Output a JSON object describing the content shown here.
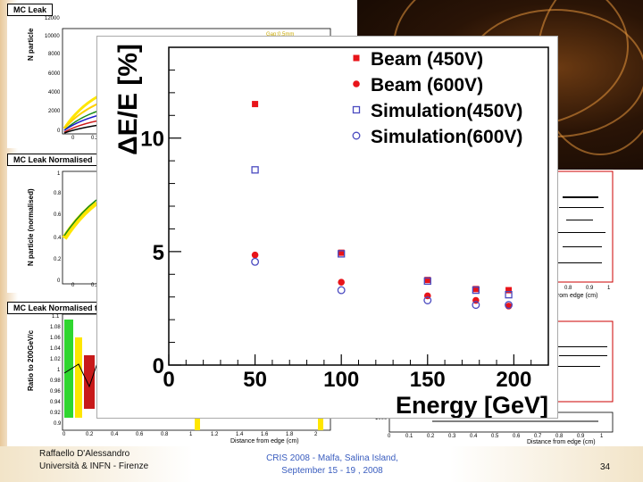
{
  "background_panels": {
    "leak": {
      "title": "MC Leak",
      "ylabel": "N particle",
      "yticks": [
        "12000",
        "10000",
        "8000",
        "6000",
        "4000",
        "2000",
        "0"
      ],
      "xticks": [
        "0",
        "0.2"
      ],
      "legend": "Gap:0.5mm"
    },
    "normalised": {
      "title": "MC Leak Normalised",
      "ylabel": "N particle (normalised)",
      "yticks": [
        "1",
        "0.8",
        "0.6",
        "0.4",
        "0.2",
        "0"
      ],
      "xticks": [
        "0",
        "0.2"
      ]
    },
    "normalised_200": {
      "title": "MC Leak Normalised to 200GeV",
      "ylabel": "Ratio to 200GeV/c",
      "yticks": [
        "1.1",
        "1.08",
        "1.06",
        "1.04",
        "1.02",
        "1",
        "0.98",
        "0.96",
        "0.94",
        "0.92",
        "0.9"
      ],
      "xticks": [
        "0",
        "0.2",
        "0.4",
        "0.6",
        "0.8",
        "1",
        "1.2",
        "1.4",
        "1.6",
        "1.8",
        "2"
      ],
      "xlabel": "Distance from edge (cm)"
    },
    "right_top": {
      "xticks": [
        "0.8",
        "0.9",
        "1"
      ],
      "xlabel": "from edge (cm)"
    },
    "right_bottom": {
      "ytick": "1000",
      "xticks": [
        "0",
        "0.1",
        "0.2",
        "0.3",
        "0.4",
        "0.5",
        "0.6",
        "0.7",
        "0.8",
        "0.9",
        "1"
      ],
      "xlabel": "Distance from edge (cm)"
    }
  },
  "chart_data": {
    "type": "scatter",
    "title": "",
    "xlabel": "Energy [GeV]",
    "ylabel": "ΔE/E [%]",
    "xlim": [
      0,
      220
    ],
    "ylim": [
      0,
      14
    ],
    "xticks": [
      0,
      50,
      100,
      150,
      200
    ],
    "yticks": [
      0,
      5,
      10
    ],
    "grid": false,
    "legend_position": "top-right",
    "series": [
      {
        "name": "Beam (450V)",
        "marker": "filled-square",
        "color": "#e8141a",
        "x": [
          50,
          100,
          150,
          178,
          197
        ],
        "y": [
          11.5,
          4.95,
          3.75,
          3.35,
          3.3
        ]
      },
      {
        "name": "Beam (600V)",
        "marker": "filled-circle",
        "color": "#e8141a",
        "x": [
          50,
          100,
          150,
          178,
          197
        ],
        "y": [
          4.85,
          3.65,
          3.05,
          2.85,
          2.6
        ]
      },
      {
        "name": "Simulation(450V)",
        "marker": "open-square",
        "color": "#4a4ac0",
        "x": [
          50,
          100,
          150,
          178,
          197
        ],
        "y": [
          8.6,
          4.9,
          3.7,
          3.3,
          3.1
        ]
      },
      {
        "name": "Simulation(600V)",
        "marker": "open-circle",
        "color": "#4a4ac0",
        "x": [
          50,
          100,
          150,
          178,
          197
        ],
        "y": [
          4.55,
          3.3,
          2.85,
          2.65,
          2.65
        ]
      }
    ]
  },
  "footer": {
    "author_line1": "Raffaello D'Alessandro",
    "author_line2": "Università & INFN - Firenze",
    "conference_line1": "CRIS 2008 -    Malfa, Salina Island,",
    "conference_line2": "September 15 - 19 , 2008",
    "page_number": "34"
  }
}
